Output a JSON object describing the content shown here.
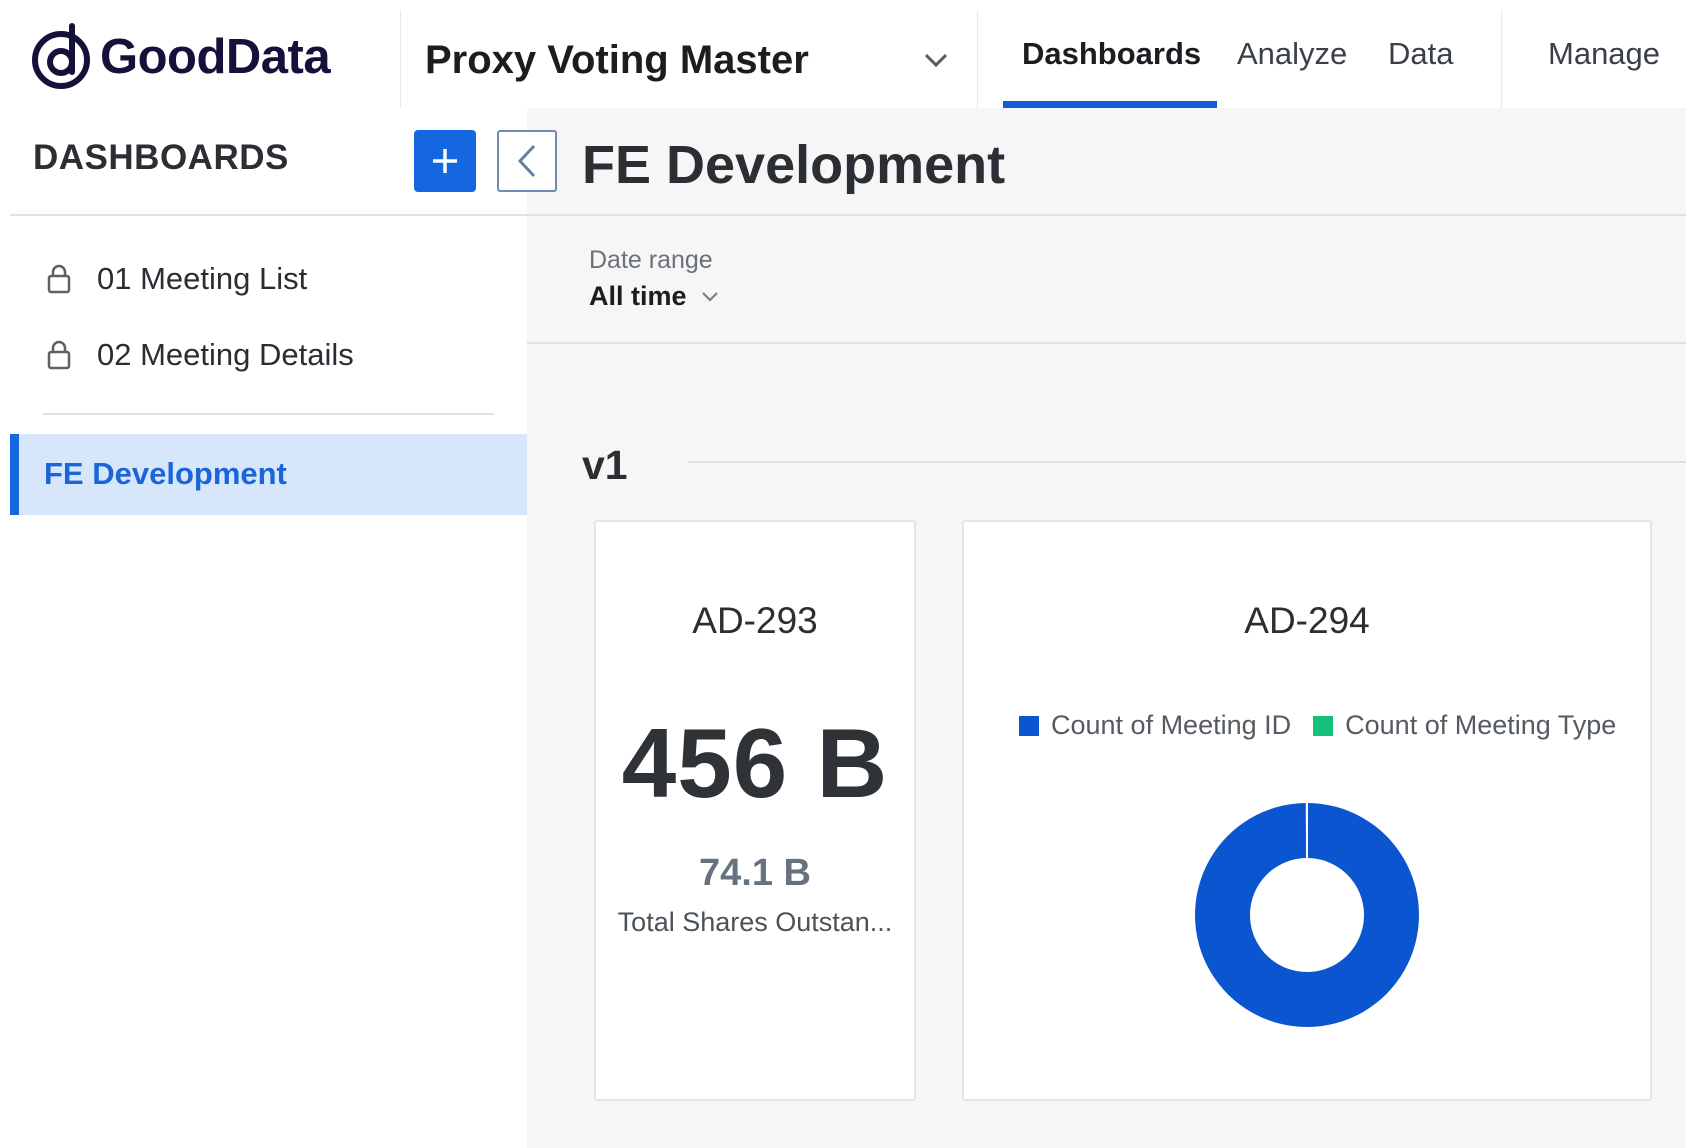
{
  "header": {
    "logo_text": "GoodData",
    "workspace_name": "Proxy Voting Master",
    "nav": [
      {
        "label": "Dashboards",
        "active": true
      },
      {
        "label": "Analyze",
        "active": false
      },
      {
        "label": "Data",
        "active": false
      },
      {
        "label": "Manage",
        "active": false
      }
    ]
  },
  "sidebar": {
    "title": "DASHBOARDS",
    "items": [
      {
        "label": "01 Meeting List",
        "icon": "lock-icon"
      },
      {
        "label": "02 Meeting Details",
        "icon": "lock-icon"
      }
    ],
    "active_item": "FE Development"
  },
  "main": {
    "title": "FE Development",
    "filter": {
      "label": "Date range",
      "value": "All time"
    },
    "section_title": "v1",
    "widgets": [
      {
        "title": "AD-293",
        "value": "456 B",
        "compare_value": "74.1 B",
        "compare_label": "Total Shares Outstan..."
      },
      {
        "title": "AD-294",
        "legend": [
          {
            "label": "Count of Meeting ID",
            "color": "#0b55d1"
          },
          {
            "label": "Count of Meeting Type",
            "color": "#14c07a"
          }
        ]
      }
    ]
  },
  "colors": {
    "accent": "#1567e0",
    "active_bg": "#d8e6fb"
  },
  "chart_data": {
    "type": "pie",
    "title": "AD-294",
    "series": [
      {
        "name": "Count of Meeting ID",
        "value": 99.8,
        "color": "#0b55d1"
      },
      {
        "name": "Count of Meeting Type",
        "value": 0.2,
        "color": "#14c07a"
      }
    ],
    "donut": true,
    "legend_position": "top"
  }
}
